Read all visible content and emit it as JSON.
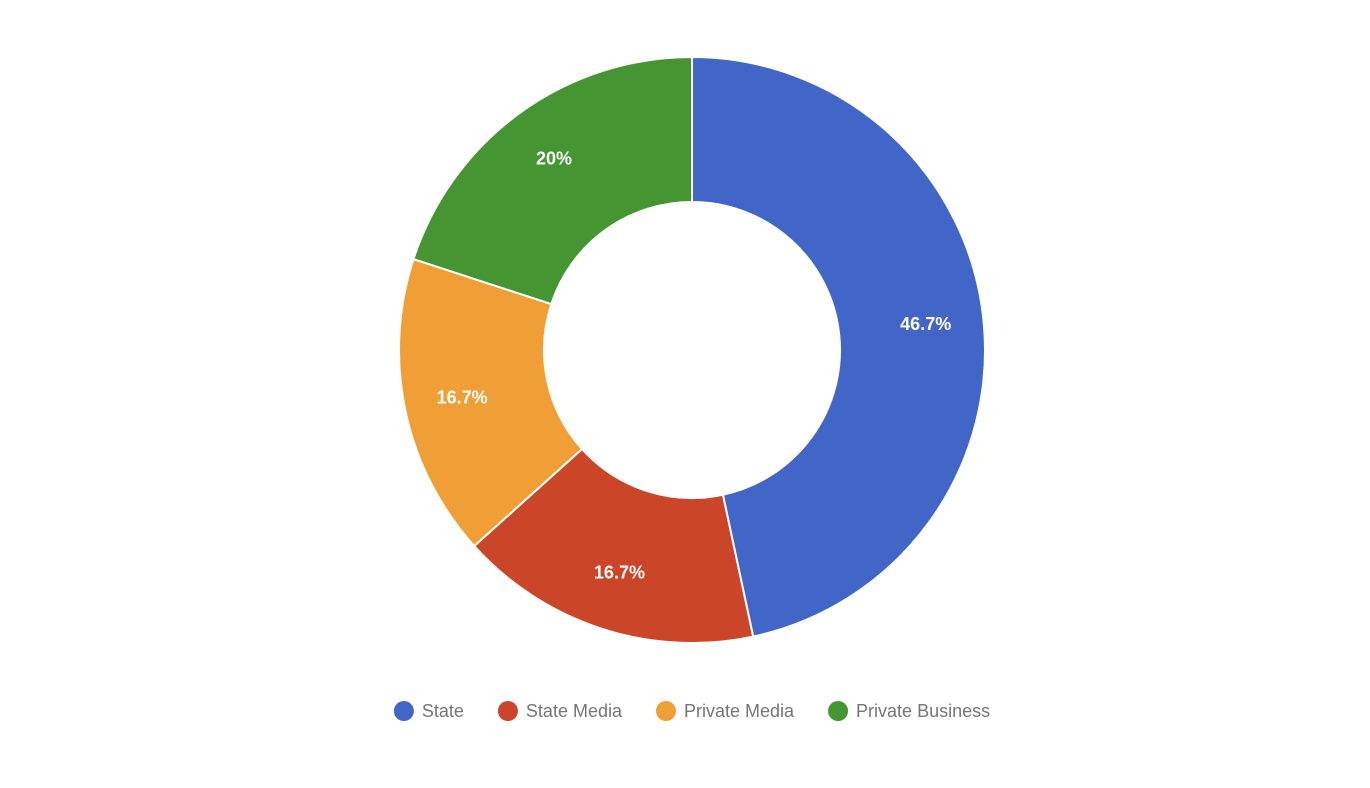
{
  "chart_data": {
    "type": "donut",
    "categories": [
      "State",
      "State Media",
      "Private Media",
      "Private Business"
    ],
    "values": [
      46.7,
      16.7,
      16.7,
      20
    ],
    "value_labels": [
      "46.7%",
      "16.7%",
      "16.7%",
      "20%"
    ],
    "colors": [
      "#4166c7",
      "#cb4628",
      "#f09f37",
      "#459632"
    ],
    "legend": "bottom"
  }
}
